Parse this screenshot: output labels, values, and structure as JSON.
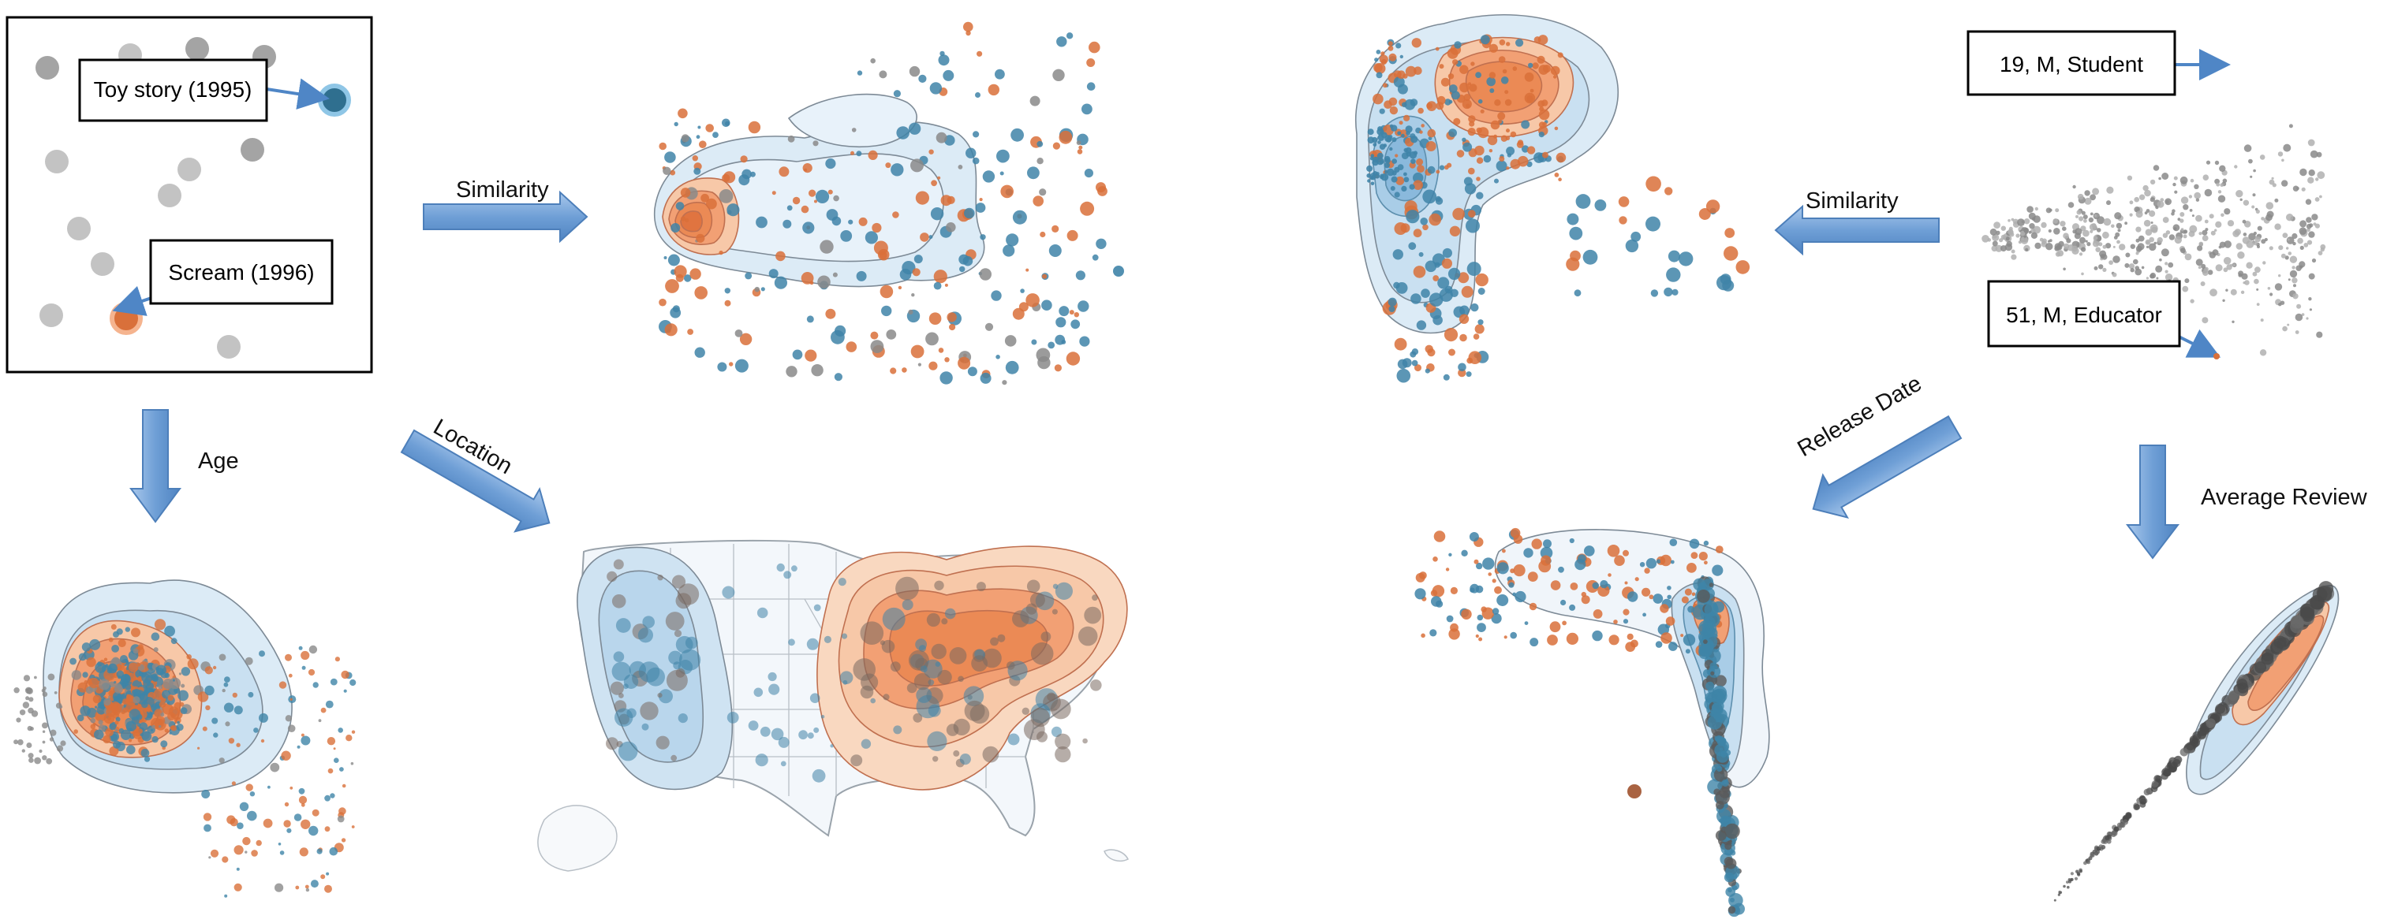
{
  "source_panel": {
    "top_label": "Toy story (1995)",
    "bottom_label": "Scream (1996)"
  },
  "user_panel": {
    "top_label": "19, M, Student",
    "bottom_label": "51, M, Educator"
  },
  "arrows": {
    "similarity_left": "Similarity",
    "age": "Age",
    "location": "Location",
    "similarity_right": "Similarity",
    "release_date": "Release Date",
    "average_review": "Average Review"
  },
  "colors": {
    "orange": "#d9703a",
    "blue": "#3f84a8",
    "gray": "#8a8a8a",
    "arrow_fill": "#6f9fd6",
    "arrow_edge": "#4d7fba",
    "density_orange": "#f2a074",
    "density_blue": "#9ec7e3",
    "contour": "#7d8a96"
  }
}
